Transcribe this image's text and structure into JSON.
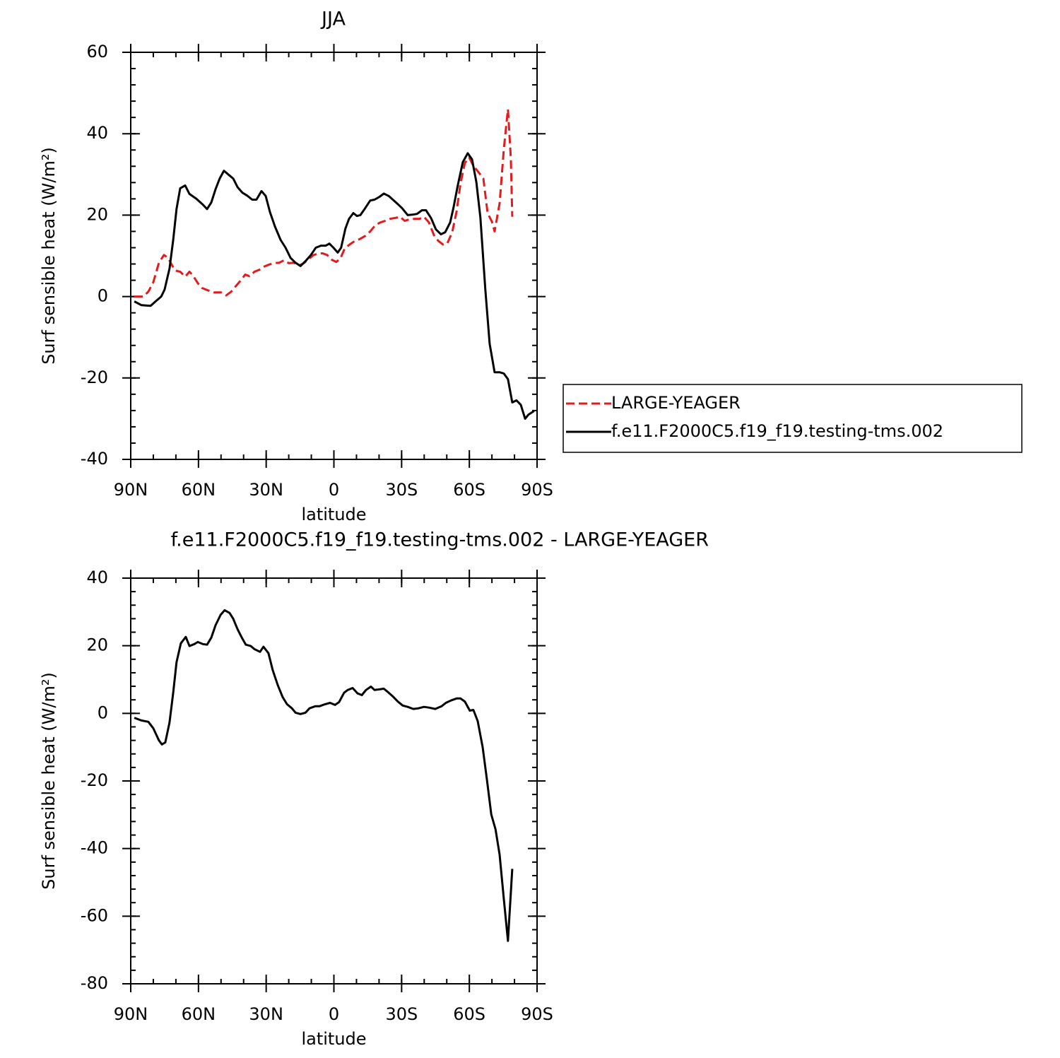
{
  "chart_data": [
    {
      "type": "line",
      "title": "JJA",
      "xlabel": "latitude",
      "ylabel": "Surf sensible heat (W/m²)",
      "xlim": [
        90,
        -90
      ],
      "xticks": [
        {
          "value": 90,
          "label": "90N"
        },
        {
          "value": 60,
          "label": "60N"
        },
        {
          "value": 30,
          "label": "30N"
        },
        0,
        {
          "value": -30,
          "label": "30S"
        },
        {
          "value": -60,
          "label": "60S"
        },
        {
          "value": -90,
          "label": "90S"
        }
      ],
      "ylim": [
        -40,
        60
      ],
      "yticks": [
        -40,
        -20,
        0,
        20,
        40,
        60
      ],
      "legend": "outside-right",
      "series": [
        {
          "name": "LARGE-YEAGER",
          "color": "#e41a1c",
          "line_style": "dashed",
          "x": [
            88.4,
            84.4,
            82.2,
            80.0,
            77.5,
            75.3,
            73.4,
            71.8,
            70.3,
            68.1,
            65.9,
            64.0,
            62.5,
            60.3,
            58.4,
            56.2,
            53.1,
            49.9,
            47.7,
            45.5,
            43.4,
            41.2,
            39.3,
            37.4,
            35.2,
            33.0,
            31.2,
            29.0,
            26.8,
            24.3,
            22.1,
            19.9,
            17.7,
            15.5,
            13.3,
            11.2,
            9.0,
            6.7,
            4.9,
            3.0,
            0.8,
            -1.1,
            -2.9,
            -4.8,
            -7.0,
            -8.6,
            -11.7,
            -13.9,
            -16.1,
            -18.3,
            -20.5,
            -22.7,
            -24.9,
            -27.1,
            -29.3,
            -31.4,
            -33.6,
            -35.8,
            -38.0,
            -39.9,
            -42.1,
            -44.3,
            -46.2,
            -48.3,
            -50.2,
            -52.4,
            -54.3,
            -56.1,
            -58.0,
            -59.9,
            -61.8,
            -64.0,
            -66.2,
            -68.1,
            -70.0,
            -71.2,
            -73.4,
            -75.3,
            -77.1,
            -78.4,
            -79.0
          ],
          "values": [
            0,
            0,
            1.2,
            3.5,
            8.3,
            10.2,
            9.5,
            7.8,
            6.4,
            6.1,
            4.9,
            6.1,
            5.2,
            3.3,
            2.1,
            1.6,
            1.0,
            1.0,
            0.3,
            1.2,
            2.6,
            4.0,
            5.4,
            5.0,
            6.1,
            6.6,
            7.3,
            7.8,
            8.2,
            8.3,
            8.9,
            8.2,
            8.3,
            7.6,
            8.2,
            9.2,
            10.2,
            10.6,
            10.6,
            10.2,
            9.0,
            8.5,
            9.4,
            11.8,
            12.8,
            13.4,
            14.2,
            14.9,
            16.0,
            17.5,
            18.2,
            18.6,
            19.1,
            19.3,
            19.6,
            18.6,
            19.0,
            19.1,
            19.1,
            19.6,
            18.2,
            15.1,
            13.7,
            12.8,
            13.0,
            15.8,
            20.8,
            27.8,
            32.8,
            34.2,
            32.1,
            30.6,
            29.0,
            20.5,
            18.4,
            16.0,
            22.9,
            36.3,
            46.0,
            33.9,
            19.6
          ]
        },
        {
          "name": "f.e11.F2000C5.f19_f19.testing-tms.002",
          "color": "#000000",
          "line_style": "solid",
          "x": [
            88.4,
            85.3,
            81.2,
            79.0,
            76.5,
            75.0,
            72.8,
            71.2,
            69.7,
            68.1,
            65.9,
            64.0,
            60.9,
            58.1,
            56.2,
            54.3,
            52.4,
            50.6,
            48.7,
            46.8,
            44.6,
            42.7,
            40.5,
            38.4,
            36.2,
            34.3,
            32.1,
            30.2,
            28.3,
            26.1,
            23.6,
            21.4,
            19.2,
            17.0,
            14.8,
            12.6,
            10.2,
            8.0,
            5.8,
            3.6,
            2.0,
            0.2,
            -1.7,
            -3.2,
            -5.1,
            -6.7,
            -8.6,
            -10.2,
            -11.7,
            -13.6,
            -16.1,
            -18.0,
            -20.2,
            -22.1,
            -24.3,
            -26.1,
            -28.3,
            -30.2,
            -32.7,
            -34.6,
            -36.8,
            -39.0,
            -40.8,
            -43.0,
            -45.2,
            -47.4,
            -49.3,
            -51.5,
            -53.0,
            -54.9,
            -57.1,
            -59.3,
            -61.2,
            -63.1,
            -64.9,
            -67.1,
            -69.0,
            -71.2,
            -73.4,
            -75.3,
            -77.1,
            -79.0,
            -80.9,
            -82.8,
            -84.7,
            -86.2,
            -88.7
          ],
          "values": [
            -1.2,
            -2.1,
            -2.3,
            -1.2,
            0,
            1.7,
            6.9,
            13.9,
            21.5,
            26.6,
            27.3,
            25.2,
            24.0,
            22.6,
            21.5,
            23.1,
            26.4,
            29.0,
            30.9,
            30.0,
            29.0,
            26.9,
            25.5,
            24.8,
            23.8,
            23.8,
            25.9,
            24.7,
            20.7,
            17.2,
            13.9,
            12.0,
            9.5,
            8.3,
            7.5,
            8.7,
            10.2,
            12.0,
            12.5,
            12.5,
            13.0,
            12.0,
            10.8,
            12.0,
            16.7,
            19.1,
            20.5,
            19.8,
            20.0,
            21.5,
            23.6,
            23.8,
            24.5,
            25.3,
            24.7,
            23.8,
            22.7,
            21.7,
            20.0,
            20.1,
            20.3,
            21.2,
            21.2,
            19.3,
            16.5,
            15.3,
            15.8,
            18.2,
            21.9,
            27.4,
            33.0,
            35.2,
            33.7,
            28.1,
            19.4,
            1.7,
            -11.6,
            -18.6,
            -18.6,
            -18.9,
            -20.3,
            -26.0,
            -25.5,
            -26.6,
            -30.0,
            -29.0,
            -28.1
          ]
        }
      ]
    },
    {
      "type": "line",
      "title": "f.e11.F2000C5.f19_f19.testing-tms.002 - LARGE-YEAGER",
      "xlabel": "latitude",
      "ylabel": "Surf sensible heat (W/m²)",
      "xlim": [
        90,
        -90
      ],
      "xticks": [
        {
          "value": 90,
          "label": "90N"
        },
        {
          "value": 60,
          "label": "60N"
        },
        {
          "value": 30,
          "label": "30N"
        },
        0,
        {
          "value": -30,
          "label": "30S"
        },
        {
          "value": -60,
          "label": "60S"
        },
        {
          "value": -90,
          "label": "90S"
        }
      ],
      "ylim": [
        -80,
        40
      ],
      "yticks": [
        -80,
        -60,
        -40,
        -20,
        0,
        20,
        40
      ],
      "series": [
        {
          "color": "#000000",
          "line_style": "solid",
          "x": [
            88.4,
            85.3,
            82.2,
            80.0,
            77.5,
            76.2,
            74.7,
            72.8,
            71.2,
            69.7,
            67.8,
            65.6,
            64.0,
            61.8,
            60.3,
            58.1,
            56.2,
            54.3,
            52.4,
            50.2,
            48.4,
            46.2,
            44.6,
            42.7,
            40.8,
            39.0,
            36.8,
            35.2,
            32.7,
            31.2,
            29.0,
            27.1,
            24.9,
            22.7,
            20.8,
            18.6,
            17.0,
            14.8,
            12.6,
            10.8,
            8.3,
            6.4,
            3.9,
            1.7,
            -0.5,
            -2.3,
            -4.5,
            -6.1,
            -8.3,
            -10.5,
            -12.4,
            -14.2,
            -16.4,
            -18.0,
            -20.2,
            -22.1,
            -24.3,
            -26.1,
            -28.3,
            -30.5,
            -32.7,
            -35.2,
            -37.4,
            -39.9,
            -42.1,
            -44.9,
            -47.7,
            -49.6,
            -51.8,
            -54.3,
            -56.1,
            -58.0,
            -60.2,
            -61.8,
            -63.7,
            -65.9,
            -67.8,
            -69.7,
            -71.6,
            -73.4,
            -75.3,
            -77.1,
            -79.0
          ],
          "values": [
            -1.3,
            -2.1,
            -2.5,
            -4.4,
            -8.0,
            -9.2,
            -8.6,
            -2.7,
            6.1,
            15.1,
            20.7,
            22.6,
            19.9,
            20.5,
            21.1,
            20.5,
            20.3,
            22.4,
            26.1,
            29.1,
            30.5,
            29.7,
            28.0,
            24.9,
            22.4,
            20.3,
            19.9,
            19.0,
            18.2,
            19.7,
            17.8,
            12.8,
            8.4,
            4.8,
            2.7,
            1.5,
            0.2,
            -0.2,
            0.2,
            1.5,
            2.1,
            2.1,
            2.7,
            3.1,
            2.5,
            3.3,
            6.1,
            6.9,
            7.5,
            5.9,
            5.4,
            6.9,
            7.9,
            6.9,
            7.1,
            7.3,
            6.1,
            5.0,
            3.5,
            2.3,
            1.9,
            1.3,
            1.5,
            1.9,
            1.7,
            1.3,
            2.1,
            3.1,
            3.8,
            4.4,
            4.4,
            3.5,
            0.8,
            1.0,
            -2.3,
            -10.0,
            -19.7,
            -29.9,
            -34.3,
            -41.8,
            -55.0,
            -67.3,
            -46.0
          ]
        }
      ]
    }
  ]
}
